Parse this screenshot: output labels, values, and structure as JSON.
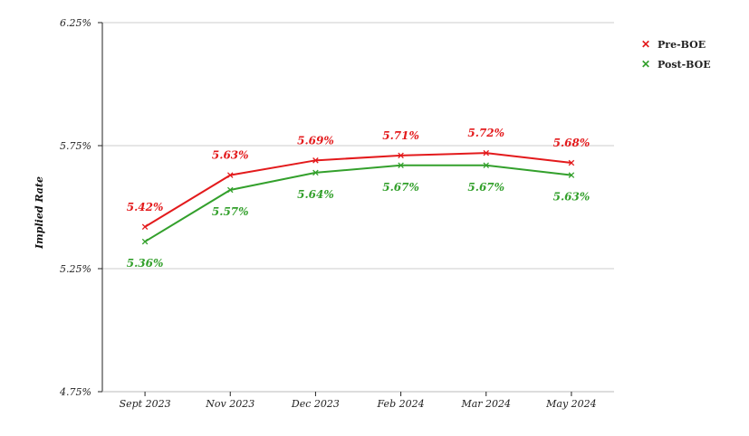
{
  "chart_data": {
    "type": "line",
    "title": "",
    "xlabel": "",
    "ylabel": "Implied Rate",
    "categories": [
      "Sept 2023",
      "Nov 2023",
      "Dec 2023",
      "Feb 2024",
      "Mar 2024",
      "May 2024"
    ],
    "series": [
      {
        "name": "Pre-BOE",
        "color": "#e31a1c",
        "values": [
          5.42,
          5.63,
          5.69,
          5.71,
          5.72,
          5.68
        ],
        "labels": [
          "5.42%",
          "5.63%",
          "5.69%",
          "5.71%",
          "5.72%",
          "5.68%"
        ]
      },
      {
        "name": "Post-BOE",
        "color": "#33a02c",
        "values": [
          5.36,
          5.57,
          5.64,
          5.67,
          5.67,
          5.63
        ],
        "labels": [
          "5.36%",
          "5.57%",
          "5.64%",
          "5.67%",
          "5.67%",
          "5.63%"
        ]
      }
    ],
    "ylim": [
      4.75,
      6.25
    ],
    "yticks": [
      4.75,
      5.25,
      5.75,
      6.25
    ],
    "ytick_labels": [
      "4.75%",
      "5.25%",
      "5.75%",
      "6.25%"
    ],
    "grid": true,
    "legend_position": "top-right"
  }
}
